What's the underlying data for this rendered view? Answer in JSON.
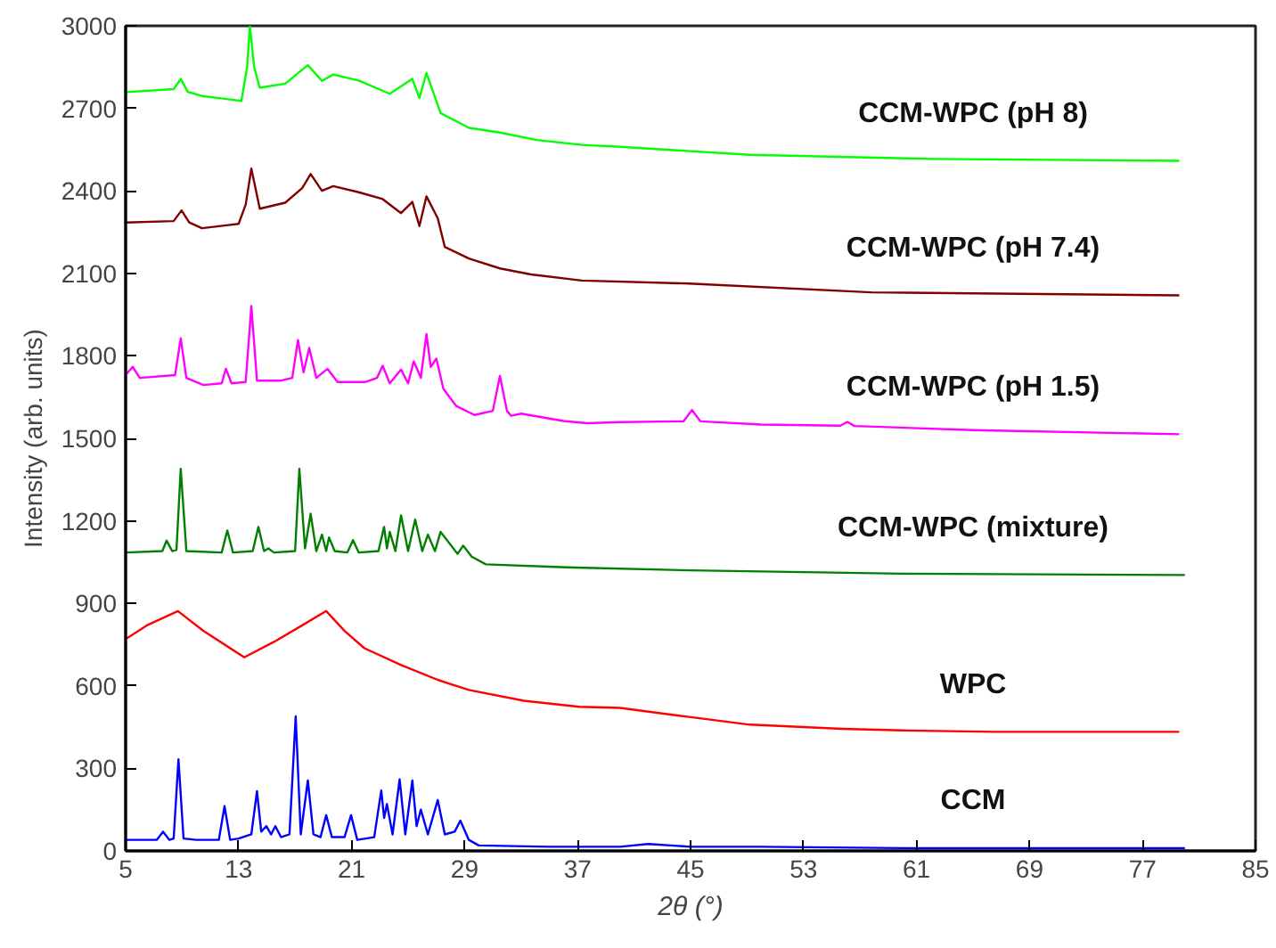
{
  "chart_data": {
    "type": "line",
    "xlabel": "2θ (°)",
    "ylabel": "Intensity (arb. units)",
    "xlim": [
      5,
      85
    ],
    "ylim": [
      0,
      3000
    ],
    "xticks": [
      5,
      13,
      21,
      29,
      37,
      45,
      53,
      61,
      69,
      77,
      85
    ],
    "yticks": [
      0,
      300,
      600,
      900,
      1200,
      1500,
      1800,
      2100,
      2400,
      2700,
      3000
    ],
    "grid": false,
    "legend": false,
    "marker": "none",
    "line_style": "solid",
    "series": [
      {
        "name": "CCM",
        "color": "#0000ff",
        "x": [
          5,
          7.2,
          7.65,
          8.1,
          8.4,
          8.74,
          9.1,
          10,
          11.6,
          12,
          12.4,
          13,
          13.9,
          14.3,
          14.6,
          14.96,
          15.3,
          15.6,
          16,
          16.6,
          17.04,
          17.4,
          17.9,
          18.3,
          18.8,
          19.2,
          19.6,
          20.5,
          20.96,
          21.4,
          22.6,
          23.1,
          23.3,
          23.5,
          23.9,
          24.4,
          24.8,
          25.3,
          25.6,
          25.9,
          26.4,
          27.1,
          27.6,
          28.3,
          28.7,
          29.3,
          30,
          35,
          40,
          42,
          45,
          50,
          60,
          70,
          80
        ],
        "values": [
          40,
          40,
          70,
          40,
          45,
          333,
          45,
          40,
          40,
          163,
          40,
          45,
          60,
          217,
          70,
          90,
          60,
          90,
          50,
          60,
          489,
          60,
          256,
          60,
          50,
          130,
          50,
          50,
          130,
          40,
          50,
          220,
          120,
          170,
          60,
          260,
          60,
          256,
          90,
          150,
          60,
          185,
          60,
          70,
          110,
          40,
          20,
          15,
          15,
          25,
          15,
          15,
          10,
          10,
          10
        ]
      },
      {
        "name": "WPC",
        "color": "#ff0000",
        "x": [
          5,
          6.5,
          8.7,
          10.5,
          13.4,
          15.5,
          17.5,
          19.2,
          20.5,
          21.9,
          24.5,
          27.1,
          29.3,
          33.2,
          37.1,
          40,
          44.9,
          49.2,
          55.7,
          60,
          66.5,
          72,
          79.6
        ],
        "values": [
          770,
          820,
          872,
          800,
          704,
          760,
          820,
          872,
          800,
          737,
          676,
          622,
          585,
          546,
          524,
          520,
          487,
          459,
          444,
          438,
          433,
          433,
          433
        ]
      },
      {
        "name": "CCM-WPC (mixture)",
        "color": "#008000",
        "x": [
          5,
          7.6,
          7.9,
          8.3,
          8.6,
          8.9,
          9.3,
          11.8,
          12.2,
          12.6,
          14,
          14.4,
          14.8,
          15.1,
          15.5,
          17,
          17.3,
          17.7,
          18.1,
          18.5,
          18.9,
          19.2,
          19.4,
          19.8,
          20.7,
          21.1,
          21.5,
          22.9,
          23.3,
          23.5,
          23.7,
          24.1,
          24.5,
          25,
          25.5,
          26,
          26.4,
          26.9,
          27.3,
          28.5,
          28.9,
          29.5,
          30.5,
          36.2,
          45,
          60,
          80
        ],
        "values": [
          1085,
          1090,
          1128,
          1090,
          1095,
          1389,
          1090,
          1085,
          1165,
          1085,
          1090,
          1178,
          1090,
          1100,
          1085,
          1090,
          1389,
          1100,
          1226,
          1090,
          1150,
          1090,
          1140,
          1090,
          1085,
          1130,
          1085,
          1090,
          1178,
          1100,
          1160,
          1090,
          1220,
          1090,
          1205,
          1090,
          1150,
          1090,
          1160,
          1080,
          1110,
          1070,
          1042,
          1031,
          1020,
          1008,
          1003
        ]
      },
      {
        "name": "CCM-WPC (pH 1.5)",
        "color": "#ff00ff",
        "x": [
          5,
          5.5,
          6,
          8.5,
          8.9,
          9.3,
          10.5,
          11.8,
          12.1,
          12.5,
          13.5,
          13.9,
          14.3,
          16,
          16.8,
          17.2,
          17.6,
          18,
          18.5,
          19.3,
          20,
          22,
          22.8,
          23.2,
          23.7,
          24.5,
          25,
          25.4,
          25.9,
          26.3,
          26.6,
          27,
          27.5,
          28.4,
          29.7,
          31,
          31.5,
          32,
          32.3,
          33,
          36,
          37.7,
          40,
          44.5,
          45.1,
          45.7,
          50,
          55.6,
          56.1,
          56.6,
          65,
          79.6
        ],
        "values": [
          1731,
          1760,
          1720,
          1730,
          1864,
          1720,
          1694,
          1700,
          1753,
          1700,
          1705,
          1981,
          1710,
          1710,
          1720,
          1857,
          1740,
          1829,
          1720,
          1753,
          1705,
          1705,
          1720,
          1764,
          1700,
          1750,
          1700,
          1780,
          1720,
          1879,
          1760,
          1790,
          1680,
          1618,
          1585,
          1600,
          1727,
          1600,
          1582,
          1590,
          1563,
          1555,
          1559,
          1562,
          1603,
          1562,
          1550,
          1546,
          1560,
          1545,
          1530,
          1515
        ]
      },
      {
        "name": "CCM-WPC (pH 7.4)",
        "color": "#800000",
        "x": [
          5,
          8.4,
          8.96,
          9.5,
          10.4,
          13,
          13.5,
          13.9,
          14.5,
          16.3,
          17.5,
          18.1,
          18.9,
          19.7,
          21.5,
          23.2,
          24.5,
          25.3,
          25.8,
          26.3,
          27.1,
          27.6,
          29.3,
          31.5,
          33.7,
          37.3,
          44.9,
          57.8,
          79.6
        ],
        "values": [
          2285,
          2290,
          2329,
          2285,
          2264,
          2280,
          2350,
          2481,
          2335,
          2357,
          2410,
          2461,
          2400,
          2417,
          2395,
          2370,
          2319,
          2360,
          2272,
          2380,
          2300,
          2196,
          2154,
          2118,
          2096,
          2074,
          2063,
          2031,
          2020
        ]
      },
      {
        "name": "CCM-WPC (pH 8)",
        "color": "#00ff00",
        "x": [
          5,
          8.4,
          8.9,
          9.4,
          10.4,
          13.2,
          13.6,
          13.8,
          14.1,
          14.5,
          16.3,
          17.9,
          18.9,
          19.7,
          21.5,
          23.7,
          25.3,
          25.8,
          26.3,
          27.3,
          29.3,
          31.5,
          34.1,
          37.3,
          40,
          49.2,
          62.2,
          79.6
        ],
        "values": [
          2759,
          2770,
          2807,
          2760,
          2745,
          2727,
          2850,
          3000,
          2850,
          2775,
          2790,
          2857,
          2800,
          2823,
          2801,
          2753,
          2807,
          2737,
          2829,
          2683,
          2629,
          2612,
          2585,
          2567,
          2560,
          2531,
          2516,
          2509
        ]
      }
    ]
  }
}
